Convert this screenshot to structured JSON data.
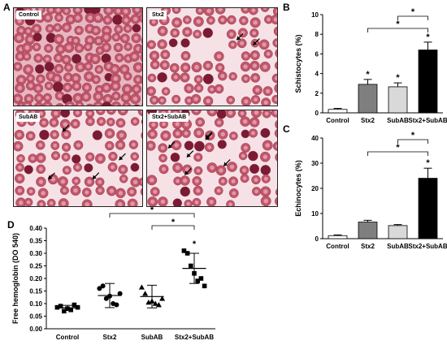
{
  "panel_labels": {
    "a": "A",
    "b": "B",
    "c": "C",
    "d": "D"
  },
  "micrographs": [
    {
      "label": "Control"
    },
    {
      "label": "Stx2"
    },
    {
      "label": "SubAB"
    },
    {
      "label": "Stx2+SubAB"
    }
  ],
  "colors": {
    "cell": "#c0566b",
    "cell_center": "#e9a9b5",
    "dark_cell": "#7a1b33",
    "background": "#f6e2e6",
    "bar_control": "#ffffff",
    "bar_stx2": "#7f7f7f",
    "bar_subab": "#d9d9d9",
    "bar_combo": "#000000"
  },
  "chart_data": [
    {
      "id": "B",
      "type": "bar",
      "categories": [
        "Control",
        "Stx2",
        "SubAB",
        "Stx2+SubAB"
      ],
      "values": [
        0.35,
        2.9,
        2.65,
        6.4
      ],
      "errors": [
        0.1,
        0.5,
        0.4,
        0.8
      ],
      "ylabel": "Schistocytes (%)",
      "ylim": [
        0,
        10
      ],
      "yticks": [
        "0",
        "2",
        "4",
        "6",
        "8",
        "10"
      ],
      "significance": [
        "",
        "*",
        "*",
        "*"
      ],
      "brackets": [
        {
          "from": "Stx2",
          "to": "Stx2+SubAB",
          "label": "*"
        },
        {
          "from": "SubAB",
          "to": "Stx2+SubAB",
          "label": "*"
        }
      ]
    },
    {
      "id": "C",
      "type": "bar",
      "categories": [
        "Control",
        "Stx2",
        "SubAB",
        "Stx2+SubAB"
      ],
      "values": [
        1.2,
        6.6,
        5.2,
        24
      ],
      "errors": [
        0.3,
        0.7,
        0.4,
        4
      ],
      "ylabel": "Echinocytes (%)",
      "ylim": [
        0,
        40
      ],
      "yticks": [
        "0",
        "10",
        "20",
        "30",
        "40"
      ],
      "significance": [
        "",
        "",
        "",
        "*"
      ],
      "brackets": [
        {
          "from": "Stx2",
          "to": "Stx2+SubAB",
          "label": "*"
        },
        {
          "from": "SubAB",
          "to": "Stx2+SubAB",
          "label": "*"
        }
      ]
    },
    {
      "id": "D",
      "type": "scatter",
      "categories": [
        "Control",
        "Stx2",
        "SubAB",
        "Stx2+SubAB"
      ],
      "ylabel": "Free hemoglobin (DO 540)",
      "ylim": [
        0,
        0.4
      ],
      "yticks": [
        "0.00",
        "0.05",
        "0.10",
        "0.15",
        "0.20",
        "0.25",
        "0.30",
        "0.35",
        "0.40"
      ],
      "markers": [
        "square",
        "circle",
        "triangle",
        "square"
      ],
      "series": [
        {
          "points": [
            0.085,
            0.09,
            0.07,
            0.08,
            0.075,
            0.095,
            0.085
          ],
          "mean": 0.083,
          "sd": 0.01
        },
        {
          "points": [
            0.16,
            0.17,
            0.12,
            0.13,
            0.1,
            0.095,
            0.14
          ],
          "mean": 0.132,
          "sd": 0.048
        },
        {
          "points": [
            0.165,
            0.14,
            0.105,
            0.11,
            0.1,
            0.095,
            0.12
          ],
          "mean": 0.128,
          "sd": 0.045
        },
        {
          "points": [
            0.31,
            0.3,
            0.25,
            0.22,
            0.19,
            0.2,
            0.17
          ],
          "mean": 0.24,
          "sd": 0.06
        }
      ],
      "significance": [
        "",
        "",
        "",
        "*"
      ],
      "brackets": [
        {
          "from": "Stx2",
          "to": "Stx2+SubAB",
          "label": "*"
        },
        {
          "from": "SubAB",
          "to": "Stx2+SubAB",
          "label": "*"
        }
      ]
    }
  ]
}
